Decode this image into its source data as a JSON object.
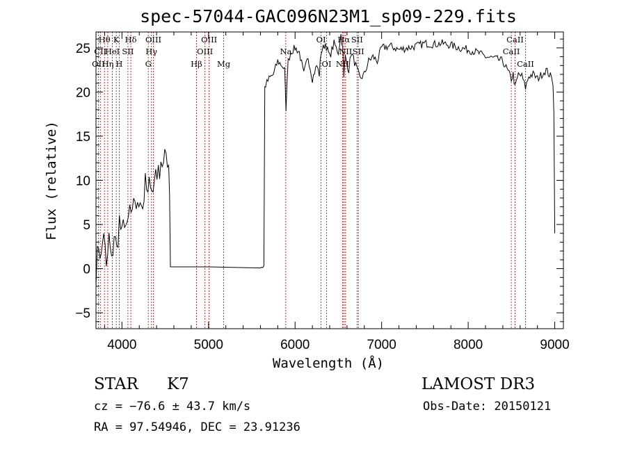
{
  "chart_data": {
    "type": "line",
    "title": "spec-57044-GAC096N23M1_sp09-229.fits",
    "xlabel": "Wavelength (Å)",
    "ylabel": "Flux (relative)",
    "xlim": [
      3700,
      9100
    ],
    "ylim": [
      -6.8,
      26.8
    ],
    "x_ticks": [
      4000,
      5000,
      6000,
      7000,
      8000,
      9000
    ],
    "y_ticks": [
      -5,
      0,
      5,
      10,
      15,
      20,
      25
    ],
    "x_tick_labels": [
      "4000",
      "5000",
      "6000",
      "7000",
      "8000",
      "9000"
    ],
    "y_tick_labels": [
      "−5",
      "0",
      "5",
      "10",
      "15",
      "20",
      "25"
    ],
    "series": [
      {
        "name": "flux",
        "x": [
          3700,
          3730,
          3760,
          3790,
          3820,
          3850,
          3880,
          3910,
          3940,
          3970,
          4000,
          4030,
          4060,
          4090,
          4120,
          4150,
          4180,
          4210,
          4240,
          4270,
          4300,
          4330,
          4360,
          4390,
          4420,
          4450,
          4480,
          4510,
          4540,
          4550,
          4560,
          5000,
          5600,
          5640,
          5650,
          5660,
          5700,
          5750,
          5800,
          5850,
          5880,
          5895,
          5905,
          5920,
          5950,
          6000,
          6050,
          6100,
          6150,
          6200,
          6250,
          6280,
          6300,
          6350,
          6400,
          6450,
          6500,
          6530,
          6550,
          6563,
          6580,
          6620,
          6650,
          6700,
          6750,
          6800,
          6850,
          6900,
          6950,
          7000,
          7100,
          7200,
          7300,
          7400,
          7500,
          7600,
          7700,
          7800,
          7900,
          8000,
          8100,
          8200,
          8300,
          8400,
          8450,
          8498,
          8520,
          8542,
          8580,
          8620,
          8662,
          8700,
          8750,
          8800,
          8850,
          8900,
          8950,
          8980,
          8990,
          9000
        ],
        "values": [
          -0.5,
          3.0,
          1.0,
          4.5,
          -0.5,
          3.5,
          0.5,
          4.0,
          2.0,
          5.5,
          3.5,
          5.8,
          4.0,
          6.8,
          5.5,
          8.0,
          6.5,
          8.5,
          7.0,
          9.5,
          8.0,
          10.5,
          8.5,
          11.5,
          10.5,
          12.5,
          11.5,
          13.0,
          12.0,
          9.0,
          0.2,
          0.2,
          0.2,
          0.3,
          20.5,
          20.8,
          21.5,
          22.0,
          23.5,
          23.0,
          22.5,
          17.5,
          21.0,
          23.5,
          24.5,
          25.0,
          24.5,
          22.0,
          24.0,
          21.5,
          23.0,
          22.0,
          24.5,
          25.5,
          24.0,
          25.5,
          24.5,
          26.5,
          25.0,
          21.5,
          24.0,
          22.5,
          24.5,
          23.0,
          21.5,
          22.0,
          23.5,
          24.0,
          23.5,
          25.0,
          25.2,
          24.8,
          25.0,
          25.2,
          25.5,
          25.4,
          25.5,
          25.3,
          25.0,
          24.8,
          24.5,
          24.0,
          23.8,
          23.5,
          22.5,
          21.5,
          22.0,
          20.5,
          22.0,
          21.8,
          20.5,
          21.8,
          22.0,
          21.5,
          22.0,
          22.5,
          21.8,
          21.0,
          18.0,
          4.0
        ]
      }
    ],
    "spectral_lines": [
      {
        "name": "Hθ",
        "wavelength": 3798,
        "row": 0
      },
      {
        "name": "OII",
        "wavelength": 3727,
        "row": 2
      },
      {
        "name": "Hη",
        "wavelength": 3836,
        "row": 2
      },
      {
        "name": "CII",
        "wavelength": 3750,
        "row": 1
      },
      {
        "name": "HeI",
        "wavelength": 3889,
        "row": 1
      },
      {
        "name": "K",
        "wavelength": 3934,
        "row": 0
      },
      {
        "name": "H",
        "wavelength": 3968,
        "row": 2
      },
      {
        "name": "SII",
        "wavelength": 4069,
        "row": 1
      },
      {
        "name": "Hδ",
        "wavelength": 4102,
        "row": 0
      },
      {
        "name": "G",
        "wavelength": 4304,
        "row": 2
      },
      {
        "name": "Hγ",
        "wavelength": 4340,
        "row": 1
      },
      {
        "name": "OIII",
        "wavelength": 4363,
        "row": 0
      },
      {
        "name": "Hβ",
        "wavelength": 4861,
        "row": 2
      },
      {
        "name": "OIII",
        "wavelength": 4959,
        "row": 1
      },
      {
        "name": "OIII",
        "wavelength": 5007,
        "row": 0
      },
      {
        "name": "Mg",
        "wavelength": 5175,
        "row": 2
      },
      {
        "name": "Na",
        "wavelength": 5893,
        "row": 1
      },
      {
        "name": "OI",
        "wavelength": 6300,
        "row": 0
      },
      {
        "name": "OI",
        "wavelength": 6364,
        "row": 2
      },
      {
        "name": "NII",
        "wavelength": 6548,
        "row": 2
      },
      {
        "name": "Hα",
        "wavelength": 6563,
        "row": 0
      },
      {
        "name": "NII",
        "wavelength": 6583,
        "row": 1
      },
      {
        "name": "SII",
        "wavelength": 6716,
        "row": 0
      },
      {
        "name": "SII",
        "wavelength": 6731,
        "row": 1
      },
      {
        "name": "CaII",
        "wavelength": 8498,
        "row": 1
      },
      {
        "name": "CaII",
        "wavelength": 8542,
        "row": 0
      },
      {
        "name": "CaII",
        "wavelength": 8662,
        "row": 2
      }
    ],
    "colors": {
      "spectrum": "#000000",
      "lines": "#b00000",
      "axes": "#000000"
    }
  },
  "info": {
    "object_class": "STAR",
    "subclass": "K7",
    "survey": "LAMOST DR3",
    "velocity": "cz = −76.6 ± 43.7 km/s",
    "obs_date": "Obs-Date: 20150121",
    "coords": "RA =  97.54946, DEC =  23.91236"
  }
}
